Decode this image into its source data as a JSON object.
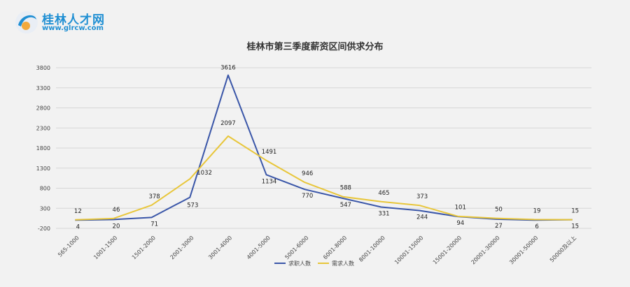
{
  "logo": {
    "name": "桂林人才网",
    "url": "www.glrcw.com"
  },
  "chart_data": {
    "type": "line",
    "title": "桂林市第三季度薪资区间供求分布",
    "categories": [
      "565-1000",
      "1001-1500",
      "1501-2000",
      "2001-3000",
      "3001-4000",
      "4001-5000",
      "5001-6000",
      "6001-8000",
      "8001-10000",
      "10001-15000",
      "15001-20000",
      "20001-30000",
      "30001-50000",
      "50000及以上"
    ],
    "ylim": [
      -200,
      3800
    ],
    "yticks": [
      -200,
      300,
      800,
      1300,
      1800,
      2300,
      2800,
      3300,
      3800
    ],
    "grid": true,
    "legend_position": "bottom",
    "series": [
      {
        "name": "求职人数",
        "color": "#3a56a8",
        "values": [
          4,
          20,
          71,
          573,
          3616,
          1134,
          770,
          547,
          331,
          244,
          94,
          27,
          6,
          15
        ],
        "labels": [
          "4",
          "20",
          "71",
          "573",
          "3616",
          "1134",
          "770",
          "547",
          "331",
          "244",
          "94",
          "27",
          "6",
          "15"
        ]
      },
      {
        "name": "需求人数",
        "color": "#e8c63a",
        "values": [
          12,
          46,
          378,
          1032,
          2097,
          1491,
          946,
          588,
          465,
          373,
          101,
          50,
          19,
          15
        ],
        "labels": [
          "12",
          "46",
          "378",
          "1032",
          "2097",
          "1491",
          "946",
          "588",
          "465",
          "373",
          "101",
          "50",
          "19",
          "15"
        ]
      }
    ]
  }
}
